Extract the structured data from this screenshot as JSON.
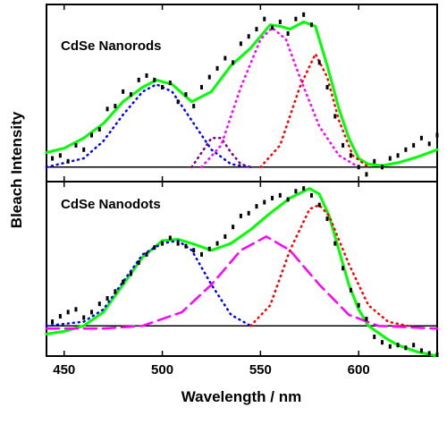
{
  "chart_data": {
    "type": "line",
    "xlabel": "Wavelength /  nm",
    "ylabel": "Bleach Intensity",
    "xlim": [
      441,
      640
    ],
    "xticks": [
      450,
      500,
      550,
      600
    ],
    "panels": [
      {
        "label": "CdSe Nanorods",
        "ylim": [
          -0.1,
          1.12
        ],
        "series": [
          {
            "color": "#00ff00",
            "style": "solid",
            "x": [
              441,
              450,
              460,
              470,
              480,
              490,
              497,
              505,
              515,
              525,
              535,
              545,
              555,
              560,
              565,
              572,
              578,
              584,
              590,
              595,
              600,
              605,
              612,
              620,
              630,
              640
            ],
            "y": [
              0.1,
              0.13,
              0.2,
              0.3,
              0.45,
              0.55,
              0.6,
              0.57,
              0.45,
              0.52,
              0.7,
              0.82,
              0.98,
              0.97,
              0.95,
              1.0,
              0.97,
              0.7,
              0.4,
              0.2,
              0.06,
              0.02,
              0.01,
              0.03,
              0.07,
              0.12
            ]
          },
          {
            "color": "#0000ff",
            "style": "dotted",
            "x": [
              441,
              460,
              470,
              480,
              490,
              497,
              505,
              515,
              525,
              535,
              545
            ],
            "y": [
              0.0,
              0.06,
              0.18,
              0.36,
              0.52,
              0.57,
              0.52,
              0.32,
              0.12,
              0.02,
              0.0
            ]
          },
          {
            "color": "#800080",
            "style": "dotted",
            "x": [
              515,
              520,
              525,
              530,
              535,
              540,
              545
            ],
            "y": [
              0.0,
              0.1,
              0.2,
              0.2,
              0.1,
              0.02,
              0.0
            ]
          },
          {
            "color": "#ff00ff",
            "style": "dotted",
            "x": [
              520,
              530,
              540,
              550,
              556,
              563,
              570,
              580,
              590,
              600
            ],
            "y": [
              0.0,
              0.15,
              0.55,
              0.88,
              0.96,
              0.88,
              0.62,
              0.28,
              0.08,
              0.0
            ]
          },
          {
            "color": "#ff0000",
            "style": "dotted",
            "x": [
              550,
              560,
              570,
              578,
              584,
              590,
              597,
              605
            ],
            "y": [
              0.0,
              0.15,
              0.55,
              0.78,
              0.62,
              0.32,
              0.08,
              0.0
            ]
          },
          {
            "color": "#000000",
            "style": "scatter",
            "x": [
              444,
              448,
              452,
              456,
              460,
              464,
              468,
              472,
              476,
              480,
              484,
              488,
              492,
              496,
              500,
              504,
              508,
              512,
              516,
              520,
              524,
              528,
              532,
              536,
              540,
              544,
              548,
              552,
              556,
              560,
              564,
              568,
              572,
              576,
              580,
              584,
              588,
              592,
              596,
              600,
              604,
              608,
              612,
              616,
              620,
              624,
              628,
              632,
              636,
              640
            ],
            "y": [
              0.06,
              0.08,
              0.04,
              0.15,
              0.12,
              0.22,
              0.26,
              0.4,
              0.42,
              0.52,
              0.5,
              0.6,
              0.63,
              0.6,
              0.55,
              0.58,
              0.45,
              0.5,
              0.42,
              0.55,
              0.62,
              0.68,
              0.75,
              0.72,
              0.85,
              0.9,
              0.95,
              1.02,
              0.96,
              1.0,
              0.92,
              1.02,
              1.05,
              0.98,
              0.72,
              0.55,
              0.35,
              0.15,
              0.08,
              0.0,
              -0.05,
              0.04,
              0.0,
              0.06,
              0.08,
              0.12,
              0.15,
              0.2,
              0.16,
              0.22
            ]
          }
        ]
      },
      {
        "label": "CdSe Nanodots",
        "ylim": [
          -0.22,
          1.05
        ],
        "series": [
          {
            "color": "#00ff00",
            "style": "solid",
            "x": [
              441,
              450,
              460,
              470,
              480,
              490,
              500,
              508,
              515,
              525,
              535,
              545,
              555,
              565,
              575,
              580,
              585,
              590,
              595,
              600,
              605,
              610,
              615,
              620,
              630,
              640
            ],
            "y": [
              -0.06,
              -0.04,
              0.0,
              0.1,
              0.3,
              0.5,
              0.62,
              0.63,
              0.6,
              0.55,
              0.6,
              0.7,
              0.82,
              0.93,
              1.0,
              0.96,
              0.8,
              0.55,
              0.3,
              0.12,
              0.0,
              -0.05,
              -0.1,
              -0.14,
              -0.19,
              -0.22
            ]
          },
          {
            "color": "#0000ff",
            "style": "dotted",
            "x": [
              441,
              460,
              470,
              480,
              490,
              500,
              508,
              515,
              525,
              535,
              545
            ],
            "y": [
              0.0,
              0.03,
              0.12,
              0.32,
              0.52,
              0.6,
              0.62,
              0.55,
              0.3,
              0.08,
              0.0
            ]
          },
          {
            "color": "#ff00ff",
            "style": "dashed",
            "x": [
              441,
              470,
              490,
              510,
              525,
              540,
              553,
              565,
              580,
              595,
              610,
              640
            ],
            "y": [
              -0.02,
              -0.02,
              0.0,
              0.1,
              0.3,
              0.55,
              0.65,
              0.55,
              0.3,
              0.08,
              0.0,
              -0.02
            ]
          },
          {
            "color": "#ff0000",
            "style": "dotted",
            "x": [
              545,
              555,
              565,
              575,
              580,
              585,
              595,
              605,
              615,
              625
            ],
            "y": [
              0.0,
              0.15,
              0.55,
              0.85,
              0.88,
              0.8,
              0.45,
              0.15,
              0.03,
              0.0
            ]
          },
          {
            "color": "#000000",
            "style": "scatter",
            "x": [
              444,
              448,
              452,
              456,
              460,
              464,
              468,
              472,
              476,
              480,
              484,
              488,
              492,
              496,
              500,
              504,
              508,
              512,
              516,
              520,
              524,
              528,
              532,
              536,
              540,
              544,
              548,
              552,
              556,
              560,
              564,
              568,
              572,
              576,
              580,
              584,
              588,
              592,
              596,
              600,
              604,
              608,
              612,
              616,
              620,
              624,
              628,
              632,
              636,
              640
            ],
            "y": [
              0.03,
              0.07,
              0.1,
              0.12,
              0.06,
              0.1,
              0.16,
              0.2,
              0.25,
              0.32,
              0.38,
              0.46,
              0.52,
              0.57,
              0.6,
              0.64,
              0.6,
              0.58,
              0.55,
              0.52,
              0.56,
              0.6,
              0.65,
              0.72,
              0.8,
              0.82,
              0.87,
              0.9,
              0.93,
              0.95,
              0.92,
              0.98,
              1.0,
              0.95,
              0.88,
              0.78,
              0.6,
              0.42,
              0.26,
              0.15,
              0.05,
              -0.08,
              -0.12,
              -0.15,
              -0.14,
              -0.16,
              -0.14,
              -0.18,
              -0.2,
              -0.21
            ]
          }
        ]
      }
    ]
  }
}
